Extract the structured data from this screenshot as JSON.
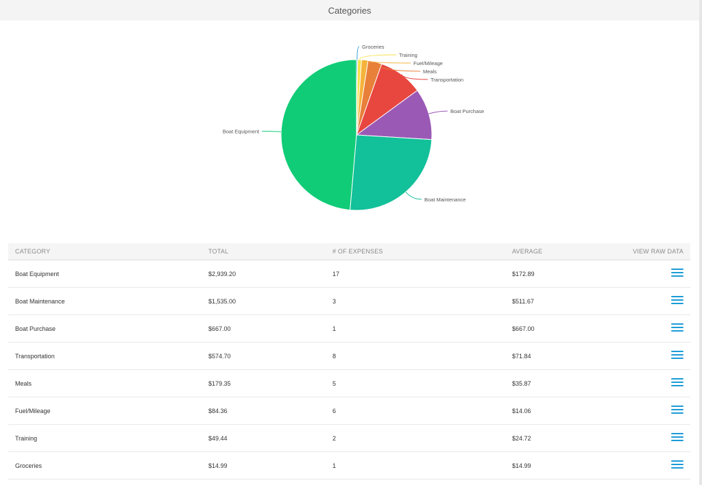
{
  "panel": {
    "title": "Categories"
  },
  "chart_data": {
    "type": "pie",
    "title": "",
    "slices": [
      {
        "label": "Groceries",
        "value": 14.99,
        "color": "#2a9fd6"
      },
      {
        "label": "Training",
        "value": 49.44,
        "color": "#f5e04a"
      },
      {
        "label": "Fuel/Mileage",
        "value": 84.36,
        "color": "#f5b33b"
      },
      {
        "label": "Meals",
        "value": 179.35,
        "color": "#e8803a"
      },
      {
        "label": "Transportation",
        "value": 574.7,
        "color": "#e84740"
      },
      {
        "label": "Boat Purchase",
        "value": 667.0,
        "color": "#9b59b6"
      },
      {
        "label": "Boat Maintenance",
        "value": 1535.0,
        "color": "#12c09a"
      },
      {
        "label": "Boat Equipment",
        "value": 2939.2,
        "color": "#11cc77"
      }
    ]
  },
  "table": {
    "headers": {
      "category": "CATEGORY",
      "total": "TOTAL",
      "count": "# OF EXPENSES",
      "average": "AVERAGE",
      "raw": "VIEW RAW DATA"
    },
    "rows": [
      {
        "category": "Boat Equipment",
        "total": "$2,939.20",
        "count": "17",
        "average": "$172.89"
      },
      {
        "category": "Boat Maintenance",
        "total": "$1,535.00",
        "count": "3",
        "average": "$511.67"
      },
      {
        "category": "Boat Purchase",
        "total": "$667.00",
        "count": "1",
        "average": "$667.00"
      },
      {
        "category": "Transportation",
        "total": "$574.70",
        "count": "8",
        "average": "$71.84"
      },
      {
        "category": "Meals",
        "total": "$179.35",
        "count": "5",
        "average": "$35.87"
      },
      {
        "category": "Fuel/Mileage",
        "total": "$84.36",
        "count": "6",
        "average": "$14.06"
      },
      {
        "category": "Training",
        "total": "$49.44",
        "count": "2",
        "average": "$24.72"
      },
      {
        "category": "Groceries",
        "total": "$14.99",
        "count": "1",
        "average": "$14.99"
      }
    ],
    "raw_icon": "hamburger-list-icon"
  }
}
